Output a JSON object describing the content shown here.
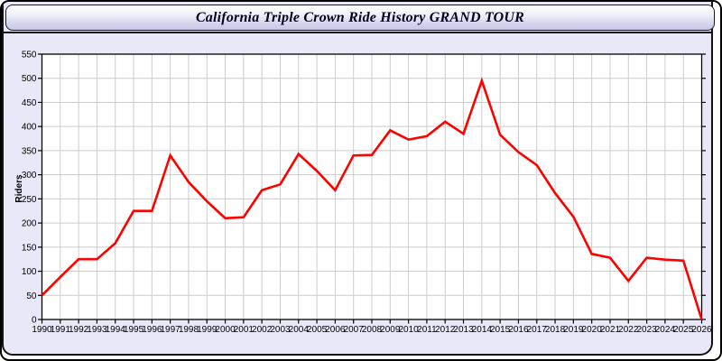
{
  "window": {
    "title": "California Triple Crown Ride History GRAND TOUR"
  },
  "colors": {
    "panel_background": "#e8e8f8",
    "header_gradient_top": "#ffffff",
    "header_gradient_bottom": "#c6c6e8",
    "frame_border": "#000000",
    "line_color": "#ff0000",
    "grid_color": "#cccccc",
    "plot_background": "#ffffff",
    "axis_color": "#000000"
  },
  "chart_data": {
    "type": "line",
    "title": "California Triple Crown Ride History GRAND TOUR",
    "xlabel": "",
    "ylabel": "Riders",
    "legend_position": "none",
    "grid": true,
    "ylim": [
      0,
      550
    ],
    "ytick_interval": 50,
    "categories": [
      "1990",
      "1991",
      "1992",
      "1993",
      "1994",
      "1995",
      "1996",
      "1997",
      "1998",
      "1999",
      "2000",
      "2001",
      "2002",
      "2003",
      "2004",
      "2005",
      "2006",
      "2007",
      "2008",
      "2009",
      "2010",
      "2011",
      "2012",
      "2013",
      "2014",
      "2015",
      "2016",
      "2017",
      "2018",
      "2019",
      "2020",
      "2021",
      "2022",
      "2023",
      "2024",
      "2025",
      "2026"
    ],
    "series": [
      {
        "name": "Riders",
        "color": "#ff0000",
        "values": [
          50,
          88,
          125,
          125,
          158,
          225,
          225,
          340,
          285,
          245,
          210,
          212,
          268,
          280,
          343,
          308,
          268,
          340,
          341,
          392,
          373,
          380,
          410,
          385,
          495,
          383,
          347,
          320,
          262,
          213,
          136,
          128,
          80,
          128,
          124,
          122,
          0
        ]
      }
    ]
  }
}
